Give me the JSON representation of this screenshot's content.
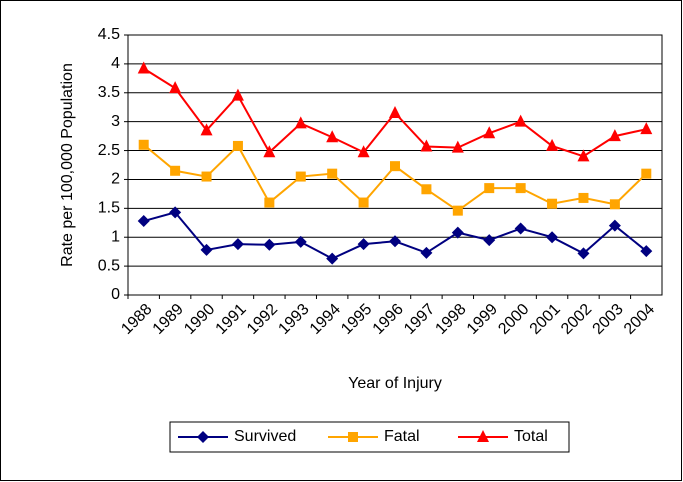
{
  "chart_data": {
    "type": "line",
    "x_label": "Year of Injury",
    "y_label": "Rate per 100,000 Population",
    "categories": [
      "1988",
      "1989",
      "1990",
      "1991",
      "1992",
      "1993",
      "1994",
      "1995",
      "1996",
      "1997",
      "1998",
      "1999",
      "2000",
      "2001",
      "2002",
      "2003",
      "2004"
    ],
    "series": [
      {
        "name": "Survived",
        "color": "#000080",
        "marker": "diamond",
        "values": [
          1.28,
          1.43,
          0.78,
          0.88,
          0.87,
          0.92,
          0.63,
          0.88,
          0.93,
          0.73,
          1.08,
          0.95,
          1.15,
          1.0,
          0.72,
          1.2,
          0.76
        ]
      },
      {
        "name": "Fatal",
        "color": "#ffa500",
        "marker": "square",
        "values": [
          2.6,
          2.15,
          2.05,
          2.58,
          1.6,
          2.05,
          2.1,
          1.6,
          2.23,
          1.83,
          1.46,
          1.85,
          1.85,
          1.58,
          1.68,
          1.57,
          2.1
        ]
      },
      {
        "name": "Total",
        "color": "#ff0000",
        "marker": "triangle",
        "values": [
          3.92,
          3.58,
          2.85,
          3.45,
          2.47,
          2.97,
          2.73,
          2.47,
          3.15,
          2.57,
          2.55,
          2.8,
          3.0,
          2.58,
          2.4,
          2.75,
          2.87
        ]
      }
    ],
    "ylim": [
      0,
      4.5
    ],
    "yticks": [
      0,
      0.5,
      1,
      1.5,
      2,
      2.5,
      3,
      3.5,
      4,
      4.5
    ],
    "grid": true,
    "legend": "bottom"
  }
}
